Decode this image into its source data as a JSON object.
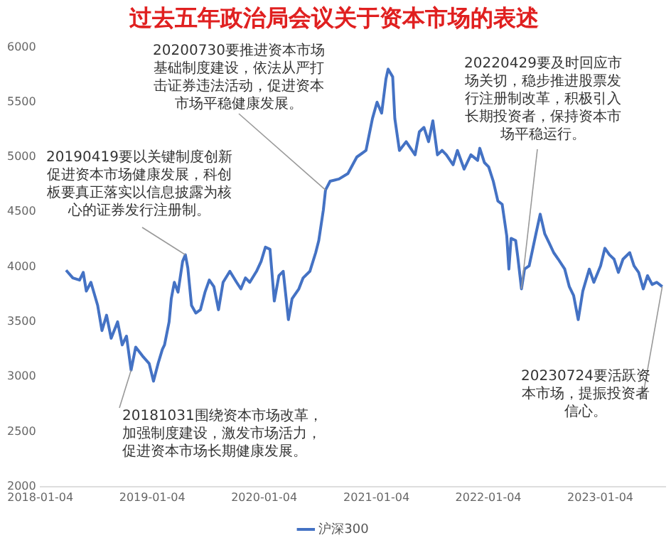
{
  "chart_data": {
    "type": "line",
    "title": "过去五年政治局会议关于资本市场的表述",
    "x": [
      "2018-03-29",
      "2018-04-20",
      "2018-05-12",
      "2018-05-24",
      "2018-06-03",
      "2018-06-18",
      "2018-07-10",
      "2018-07-24",
      "2018-08-08",
      "2018-08-23",
      "2018-09-13",
      "2018-09-28",
      "2018-10-12",
      "2018-10-27",
      "2018-11-11",
      "2018-12-03",
      "2018-12-25",
      "2019-01-08",
      "2019-01-23",
      "2019-02-06",
      "2019-02-13",
      "2019-02-28",
      "2019-03-07",
      "2019-03-17",
      "2019-03-29",
      "2019-04-13",
      "2019-04-22",
      "2019-04-30",
      "2019-05-12",
      "2019-05-26",
      "2019-06-10",
      "2019-06-25",
      "2019-07-09",
      "2019-07-24",
      "2019-08-08",
      "2019-08-23",
      "2019-09-14",
      "2019-10-06",
      "2019-10-20",
      "2019-11-04",
      "2019-11-18",
      "2019-12-10",
      "2019-12-25",
      "2020-01-08",
      "2020-01-23",
      "2020-02-06",
      "2020-02-21",
      "2020-03-06",
      "2020-03-23",
      "2020-04-04",
      "2020-04-26",
      "2020-05-10",
      "2020-06-01",
      "2020-06-20",
      "2020-06-30",
      "2020-07-15",
      "2020-07-22",
      "2020-08-06",
      "2020-09-04",
      "2020-10-03",
      "2020-11-01",
      "2020-12-01",
      "2020-12-22",
      "2021-01-06",
      "2021-01-21",
      "2021-02-04",
      "2021-02-11",
      "2021-02-26",
      "2021-03-05",
      "2021-03-20",
      "2021-04-11",
      "2021-05-10",
      "2021-05-24",
      "2021-06-08",
      "2021-06-23",
      "2021-07-07",
      "2021-07-22",
      "2021-08-06",
      "2021-08-20",
      "2021-09-11",
      "2021-09-25",
      "2021-10-17",
      "2021-11-08",
      "2021-11-30",
      "2021-12-07",
      "2021-12-22",
      "2022-01-05",
      "2022-01-20",
      "2022-02-04",
      "2022-02-18",
      "2022-03-05",
      "2022-03-12",
      "2022-03-19",
      "2022-04-03",
      "2022-04-10",
      "2022-04-22",
      "2022-05-02",
      "2022-05-17",
      "2022-06-08",
      "2022-06-22",
      "2022-07-07",
      "2022-07-21",
      "2022-08-05",
      "2022-08-20",
      "2022-09-10",
      "2022-09-25",
      "2022-10-09",
      "2022-10-24",
      "2022-11-08",
      "2022-11-29",
      "2022-12-14",
      "2023-01-05",
      "2023-01-19",
      "2023-02-03",
      "2023-02-18",
      "2023-03-04",
      "2023-03-19",
      "2023-04-10",
      "2023-04-24",
      "2023-05-09",
      "2023-05-24",
      "2023-06-07",
      "2023-06-22",
      "2023-07-07",
      "2023-07-25"
    ],
    "series": [
      {
        "name": "沪深300",
        "color": "#4472c4",
        "values": [
          3970,
          3900,
          3880,
          3950,
          3780,
          3860,
          3650,
          3420,
          3560,
          3350,
          3500,
          3290,
          3370,
          3060,
          3270,
          3190,
          3120,
          2960,
          3120,
          3250,
          3290,
          3500,
          3710,
          3860,
          3770,
          4050,
          4110,
          3990,
          3650,
          3580,
          3610,
          3770,
          3880,
          3820,
          3610,
          3860,
          3960,
          3860,
          3800,
          3900,
          3860,
          3960,
          4050,
          4180,
          4160,
          3690,
          3920,
          3960,
          3520,
          3710,
          3800,
          3900,
          3960,
          4130,
          4240,
          4520,
          4700,
          4780,
          4800,
          4850,
          5000,
          5060,
          5350,
          5500,
          5400,
          5710,
          5800,
          5730,
          5350,
          5060,
          5140,
          5020,
          5230,
          5270,
          5140,
          5330,
          5020,
          5060,
          5020,
          4930,
          5060,
          4890,
          5020,
          4970,
          5080,
          4950,
          4910,
          4780,
          4600,
          4570,
          4280,
          3980,
          4260,
          4240,
          4090,
          3800,
          3980,
          4010,
          4300,
          4480,
          4300,
          4220,
          4130,
          4070,
          3980,
          3820,
          3740,
          3520,
          3780,
          3980,
          3860,
          4010,
          4170,
          4110,
          4070,
          3950,
          4070,
          4130,
          4010,
          3950,
          3800,
          3920,
          3840,
          3860,
          3820
        ]
      }
    ],
    "xlim": [
      "2018-01-04",
      "2023-08-04"
    ],
    "xticks": [
      "2018-01-04",
      "2019-01-04",
      "2020-01-04",
      "2021-01-04",
      "2022-01-04",
      "2023-01-04"
    ],
    "ylim": [
      2000,
      6000
    ],
    "yticks": [
      2000,
      2500,
      3000,
      3500,
      4000,
      4500,
      5000,
      5500,
      6000
    ],
    "grid": false,
    "legend": "bottom",
    "marker": "none",
    "line_style": "solid",
    "annotations": [
      {
        "text": "20181031围绕资本市场改革，加强制度建设，激发市场活力，促进资本市场长期健康发展。",
        "x": "2018-10-27",
        "y": 3060
      },
      {
        "text": "20190419要以关键制度创新促进资本市场健康发展，科创板要真正落实以信息披露为核心的证券发行注册制。",
        "x": "2019-04-22",
        "y": 4110
      },
      {
        "text": "20200730要推进资本市场基础制度建设，依法从严打击证券违法活动，促进资本市场平稳健康发展。",
        "x": "2020-07-22",
        "y": 4700
      },
      {
        "text": "20220429要及时回应市场关切，稳步推进股票发行注册制改革，积极引入长期投资者，保持资本市场平稳运行。",
        "x": "2022-04-22",
        "y": 3800
      },
      {
        "text": "20230724要活跃资本市场，提振投资者信心。",
        "x": "2023-07-25",
        "y": 3820
      }
    ]
  }
}
